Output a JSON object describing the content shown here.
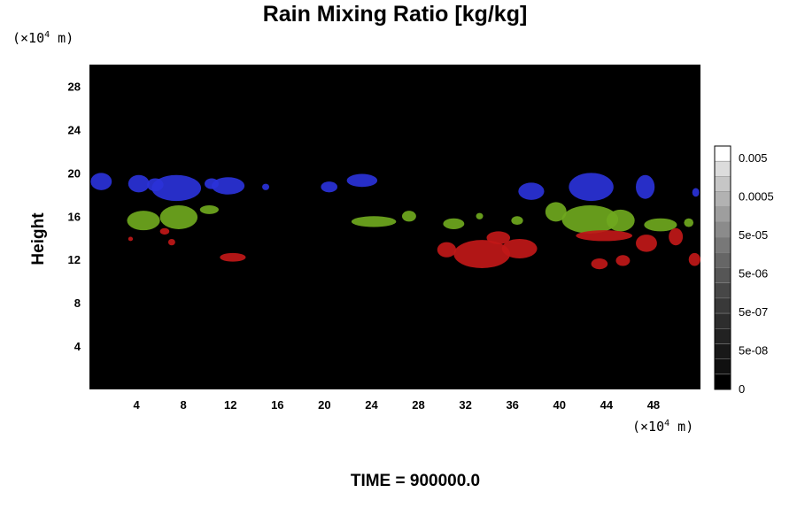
{
  "chart_data": {
    "type": "heatmap",
    "title": "Rain Mixing Ratio [kg/kg]",
    "ylabel": "Height",
    "x_unit_prefix": "(×10",
    "x_unit_exp": "4",
    "x_unit_suffix": " m)",
    "y_unit_prefix": "(×10",
    "y_unit_exp": "4",
    "y_unit_suffix": " m)",
    "xlim": [
      0,
      52
    ],
    "ylim": [
      0,
      30
    ],
    "x_ticks": [
      4,
      8,
      12,
      16,
      20,
      24,
      28,
      32,
      36,
      40,
      44,
      48
    ],
    "y_ticks": [
      4,
      8,
      12,
      16,
      20,
      24,
      28
    ],
    "background_color": "#000000",
    "layers": [
      {
        "color": "#2a32d8",
        "cells": [
          [
            1.0,
            19.2,
            0.9,
            0.8
          ],
          [
            4.2,
            19.0,
            0.9,
            0.8
          ],
          [
            5.6,
            18.9,
            0.7,
            0.6
          ],
          [
            7.4,
            18.6,
            2.1,
            1.2
          ],
          [
            10.4,
            19.0,
            0.6,
            0.5
          ],
          [
            11.8,
            18.8,
            1.4,
            0.8
          ],
          [
            15.0,
            18.7,
            0.3,
            0.3
          ],
          [
            20.4,
            18.7,
            0.7,
            0.5
          ],
          [
            23.2,
            19.3,
            1.3,
            0.6
          ],
          [
            37.6,
            18.3,
            1.1,
            0.8
          ],
          [
            42.7,
            18.7,
            1.9,
            1.3
          ],
          [
            47.3,
            18.7,
            0.8,
            1.1
          ],
          [
            51.6,
            18.2,
            0.3,
            0.4
          ]
        ]
      },
      {
        "color": "#6fa81e",
        "cells": [
          [
            4.6,
            15.6,
            1.4,
            0.9
          ],
          [
            7.6,
            15.9,
            1.6,
            1.1
          ],
          [
            10.2,
            16.6,
            0.8,
            0.4
          ],
          [
            24.2,
            15.5,
            1.9,
            0.5
          ],
          [
            27.2,
            16.0,
            0.6,
            0.5
          ],
          [
            31.0,
            15.3,
            0.9,
            0.5
          ],
          [
            33.2,
            16.0,
            0.3,
            0.3
          ],
          [
            36.4,
            15.6,
            0.5,
            0.4
          ],
          [
            39.7,
            16.4,
            0.9,
            0.9
          ],
          [
            42.6,
            15.7,
            2.4,
            1.3
          ],
          [
            45.2,
            15.6,
            1.2,
            1.0
          ],
          [
            48.6,
            15.2,
            1.4,
            0.6
          ],
          [
            51.0,
            15.4,
            0.4,
            0.4
          ]
        ]
      },
      {
        "color": "#c01818",
        "cells": [
          [
            3.5,
            13.9,
            0.2,
            0.2
          ],
          [
            6.4,
            14.6,
            0.4,
            0.3
          ],
          [
            7.0,
            13.6,
            0.3,
            0.3
          ],
          [
            12.2,
            12.2,
            1.1,
            0.4
          ],
          [
            30.4,
            12.9,
            0.8,
            0.7
          ],
          [
            33.4,
            12.5,
            2.4,
            1.3
          ],
          [
            36.6,
            13.0,
            1.5,
            0.9
          ],
          [
            34.8,
            14.0,
            1.0,
            0.6
          ],
          [
            43.8,
            14.2,
            2.4,
            0.5
          ],
          [
            47.4,
            13.5,
            0.9,
            0.8
          ],
          [
            43.4,
            11.6,
            0.7,
            0.5
          ],
          [
            45.4,
            11.9,
            0.6,
            0.5
          ],
          [
            49.9,
            14.1,
            0.6,
            0.8
          ],
          [
            51.5,
            12.0,
            0.5,
            0.6
          ]
        ]
      }
    ],
    "colorbar": {
      "labels": [
        "0.005",
        "0.0005",
        "5e-05",
        "5e-06",
        "5e-07",
        "5e-08",
        "0"
      ],
      "colors": [
        "#ffffff",
        "#dcdcdc",
        "#c6c6c6",
        "#b2b2b2",
        "#9e9e9e",
        "#8b8b8b",
        "#787878",
        "#666666",
        "#565656",
        "#474747",
        "#393939",
        "#2d2d2d",
        "#222222",
        "#181818",
        "#101010",
        "#000000"
      ]
    }
  },
  "footer": {
    "time_label": "TIME = 900000.0"
  }
}
